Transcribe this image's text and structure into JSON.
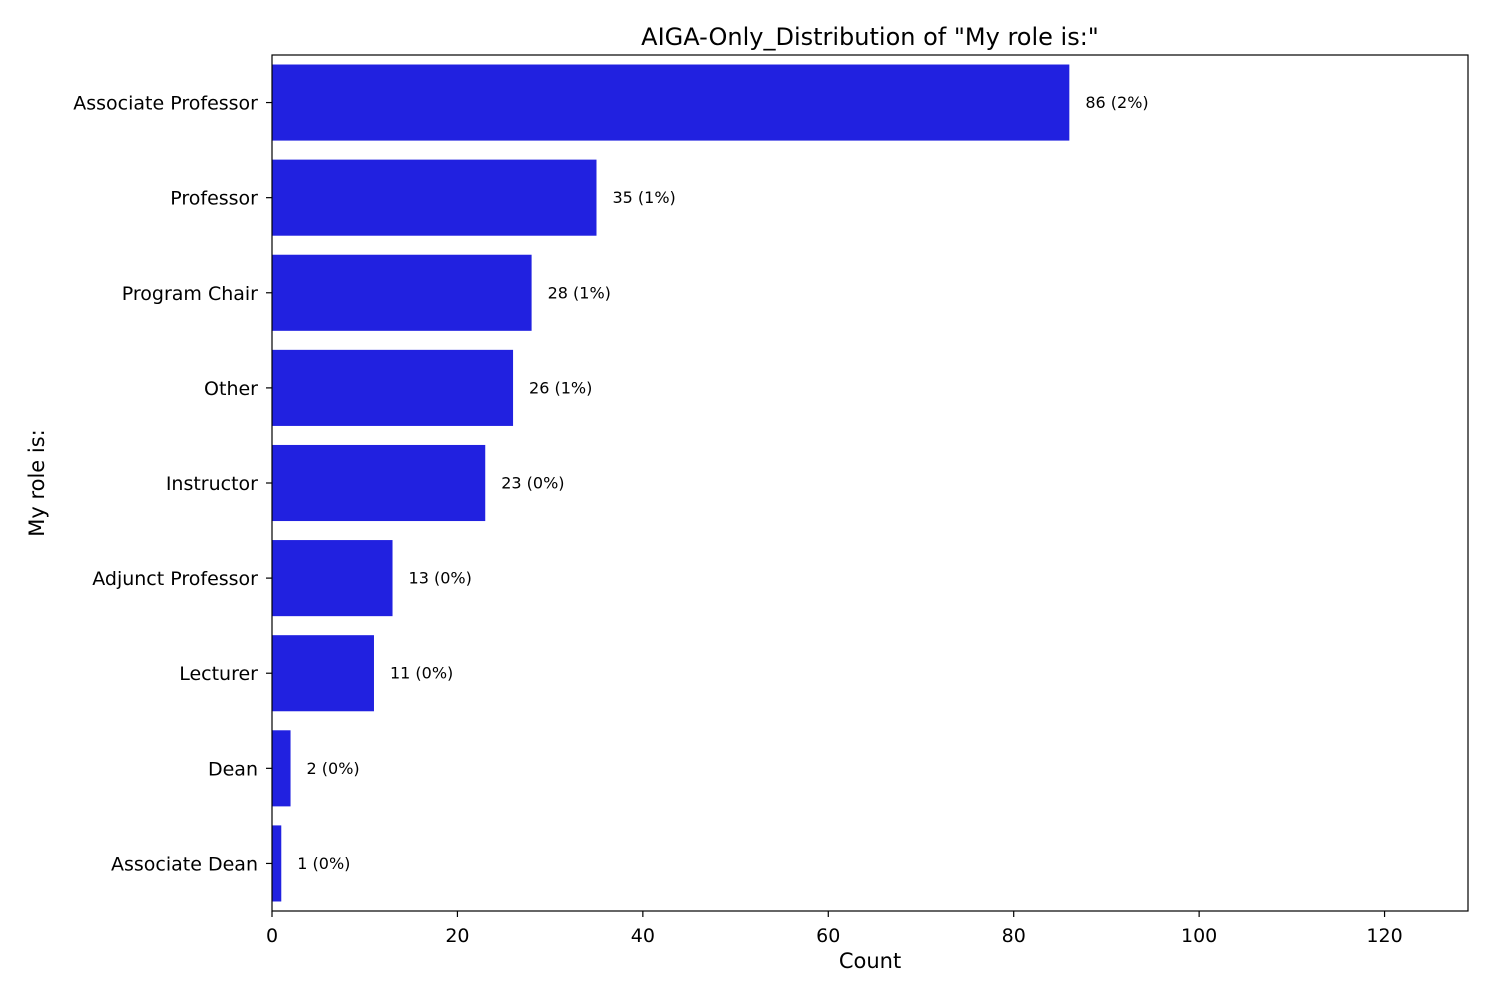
{
  "chart_data": {
    "type": "bar",
    "orientation": "horizontal",
    "title": "AIGA-Only_Distribution of \"My role is:\"",
    "xlabel": "Count",
    "ylabel": "My role is:",
    "categories": [
      "Associate Professor",
      "Professor",
      "Program Chair",
      "Other",
      "Instructor",
      "Adjunct Professor",
      "Lecturer",
      "Dean",
      "Associate Dean"
    ],
    "values": [
      86,
      35,
      28,
      26,
      23,
      13,
      11,
      2,
      1
    ],
    "data_labels": [
      "86 (2%)",
      "35 (1%)",
      "28 (1%)",
      "26 (1%)",
      "23 (0%)",
      "13 (0%)",
      "11 (0%)",
      "2 (0%)",
      "1 (0%)"
    ],
    "xlim": [
      0,
      129
    ],
    "xticks": [
      0,
      20,
      40,
      60,
      80,
      100,
      120
    ],
    "grid": false,
    "legend": false,
    "bar_color": "#2121e0"
  }
}
